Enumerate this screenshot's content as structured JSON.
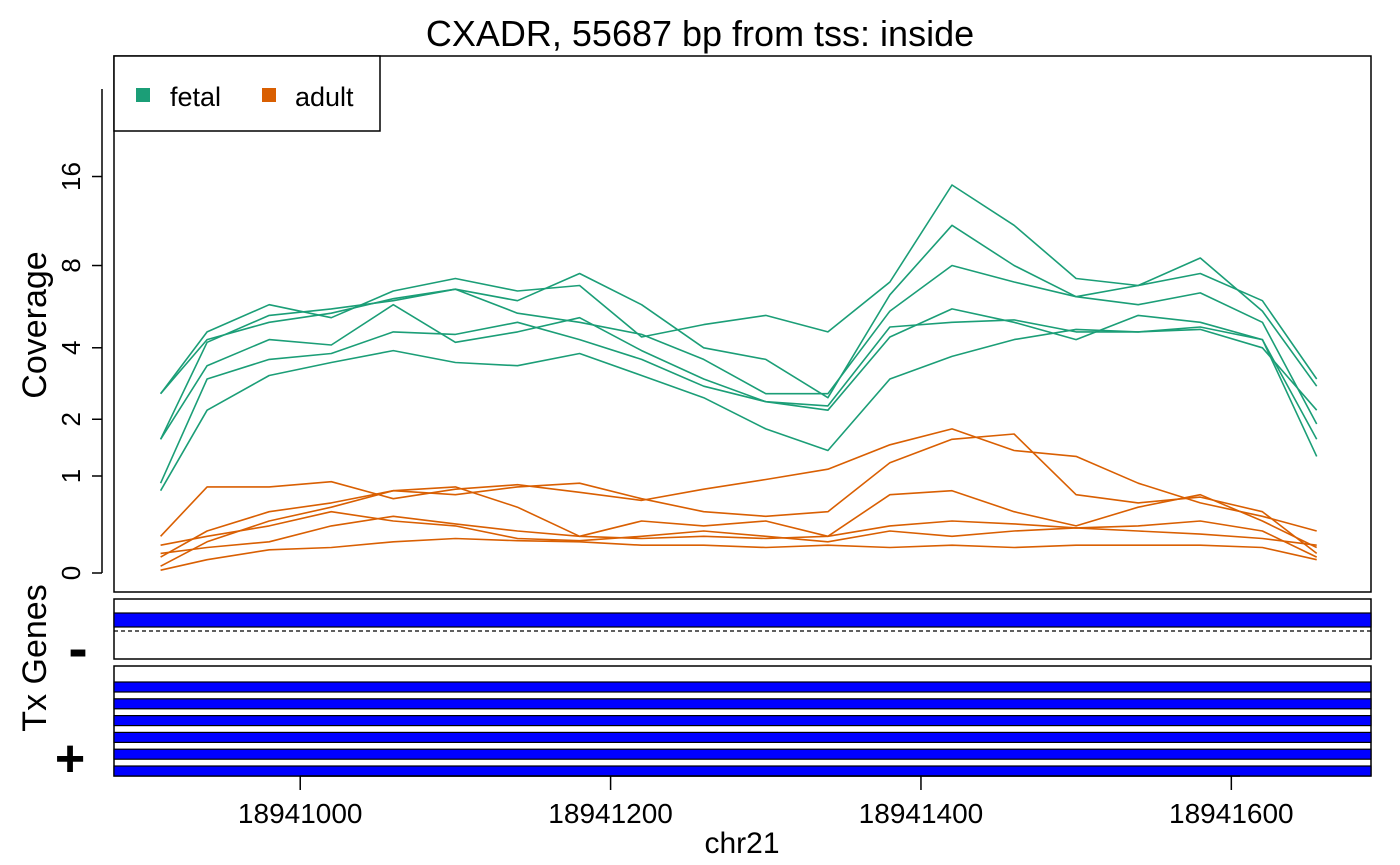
{
  "figure": {
    "title": "CXADR, 55687 bp from tss: inside",
    "xlabel": "chr21",
    "colors": {
      "fetal": "#1b9e77",
      "adult": "#d95f02",
      "exon": "#0000ff",
      "frame": "#000000"
    }
  },
  "chart_data": {
    "type": "line",
    "title": "CXADR, 55687 bp from tss: inside",
    "xlabel": "chr21",
    "ylabel": "Coverage",
    "y_scale": "log2(coverage + 1)",
    "xlim": [
      18940880,
      18941690
    ],
    "ylim": [
      0,
      16.5
    ],
    "y_ticks": [
      0,
      1,
      2,
      4,
      8,
      16
    ],
    "y_tick_labels": [
      "0",
      "1",
      "2",
      "4",
      "8",
      "16"
    ],
    "x_ticks": [
      18941000,
      18941200,
      18941400,
      18941600
    ],
    "x_tick_labels": [
      "18941000",
      "18941200",
      "18941400",
      "18941600"
    ],
    "grid": false,
    "legend": {
      "position": "top-left",
      "entries": [
        {
          "label": "fetal",
          "color": "#1b9e77"
        },
        {
          "label": "adult",
          "color": "#d95f02"
        }
      ]
    },
    "series": [
      {
        "group": "fetal",
        "x": [
          18940910,
          18940940,
          18940980,
          18941020,
          18941060,
          18941100,
          18941140,
          18941180,
          18941220,
          18941260,
          18941300,
          18941340,
          18941380,
          18941420,
          18941460,
          18941500,
          18941540,
          18941580,
          18941620,
          18941655
        ],
        "y": [
          2.6,
          4.6,
          5.8,
          5.2,
          6.5,
          7.2,
          6.5,
          6.8,
          4.4,
          4.9,
          5.3,
          4.6,
          7.0,
          15.0,
          11.0,
          7.2,
          6.8,
          7.5,
          6.0,
          3.0
        ]
      },
      {
        "group": "fetal",
        "x": [
          18940910,
          18940940,
          18940980,
          18941020,
          18941060,
          18941100,
          18941140,
          18941180,
          18941220,
          18941260,
          18941300,
          18941340,
          18941380,
          18941420,
          18941460,
          18941500,
          18941540,
          18941580,
          18941620,
          18941655
        ],
        "y": [
          1.6,
          4.2,
          5.3,
          5.6,
          6.0,
          6.6,
          6.0,
          7.5,
          5.8,
          4.0,
          3.6,
          2.5,
          6.3,
          11.0,
          8.0,
          6.2,
          6.8,
          8.5,
          5.5,
          2.8
        ]
      },
      {
        "group": "fetal",
        "x": [
          18940910,
          18940940,
          18940980,
          18941020,
          18941060,
          18941100,
          18941140,
          18941180,
          18941220,
          18941260,
          18941300,
          18941340,
          18941380,
          18941420,
          18941460,
          18941500,
          18941540,
          18941580,
          18941620,
          18941655
        ],
        "y": [
          2.6,
          4.3,
          5.0,
          5.4,
          6.1,
          6.6,
          5.4,
          5.0,
          4.5,
          3.6,
          2.6,
          2.6,
          5.5,
          8.0,
          7.0,
          6.2,
          5.8,
          6.4,
          5.0,
          1.9
        ]
      },
      {
        "group": "fetal",
        "x": [
          18940910,
          18940940,
          18940980,
          18941020,
          18941060,
          18941100,
          18941140,
          18941180,
          18941220,
          18941260,
          18941300,
          18941340,
          18941380,
          18941420,
          18941460,
          18941500,
          18941540,
          18941580,
          18941620,
          18941655
        ],
        "y": [
          1.6,
          3.4,
          4.3,
          4.1,
          5.8,
          4.2,
          4.6,
          5.2,
          3.9,
          3.0,
          2.4,
          2.2,
          4.4,
          5.6,
          5.0,
          4.3,
          5.3,
          5.0,
          4.3,
          1.6
        ]
      },
      {
        "group": "fetal",
        "x": [
          18940910,
          18940940,
          18940980,
          18941020,
          18941060,
          18941100,
          18941140,
          18941180,
          18941220,
          18941260,
          18941300,
          18941340,
          18941380,
          18941420,
          18941460,
          18941500,
          18941540,
          18941580,
          18941620,
          18941655
        ],
        "y": [
          0.8,
          2.2,
          3.1,
          3.5,
          3.9,
          3.5,
          3.4,
          3.8,
          3.1,
          2.5,
          1.8,
          1.4,
          3.0,
          3.7,
          4.3,
          4.7,
          4.6,
          4.8,
          4.3,
          1.3
        ]
      },
      {
        "group": "fetal",
        "x": [
          18940910,
          18940940,
          18940980,
          18941020,
          18941060,
          18941100,
          18941140,
          18941180,
          18941220,
          18941260,
          18941300,
          18941340,
          18941380,
          18941420,
          18941460,
          18941500,
          18941540,
          18941580,
          18941620,
          18941655
        ],
        "y": [
          0.9,
          3.0,
          3.6,
          3.8,
          4.6,
          4.5,
          5.0,
          4.3,
          3.6,
          2.8,
          2.4,
          2.3,
          4.8,
          5.0,
          5.1,
          4.6,
          4.6,
          4.7,
          4.0,
          2.2
        ]
      },
      {
        "group": "adult",
        "x": [
          18940910,
          18940940,
          18940980,
          18941020,
          18941060,
          18941100,
          18941140,
          18941180,
          18941220,
          18941260,
          18941300,
          18941340,
          18941380,
          18941420,
          18941460,
          18941500,
          18941540,
          18941580,
          18941620,
          18941655
        ],
        "y": [
          0.22,
          0.3,
          0.4,
          0.55,
          0.45,
          0.4,
          0.28,
          0.26,
          0.3,
          0.35,
          0.3,
          0.25,
          0.35,
          0.3,
          0.35,
          0.38,
          0.35,
          0.32,
          0.28,
          0.22
        ]
      },
      {
        "group": "adult",
        "x": [
          18940910,
          18940940,
          18940980,
          18941020,
          18941060,
          18941100,
          18941140,
          18941180,
          18941220,
          18941260,
          18941300,
          18941340,
          18941380,
          18941420,
          18941460,
          18941500,
          18941540,
          18941580,
          18941620,
          18941655
        ],
        "y": [
          0.3,
          0.85,
          0.85,
          0.92,
          0.7,
          0.82,
          0.88,
          0.78,
          0.68,
          0.82,
          0.95,
          1.1,
          1.5,
          1.8,
          1.4,
          1.3,
          0.9,
          0.65,
          0.5,
          0.35
        ]
      },
      {
        "group": "adult",
        "x": [
          18940910,
          18940940,
          18940980,
          18941020,
          18941060,
          18941100,
          18941140,
          18941180,
          18941220,
          18941260,
          18941300,
          18941340,
          18941380,
          18941420,
          18941460,
          18941500,
          18941540,
          18941580,
          18941620,
          18941655
        ],
        "y": [
          0.12,
          0.35,
          0.55,
          0.65,
          0.8,
          0.75,
          0.85,
          0.9,
          0.7,
          0.55,
          0.5,
          0.55,
          1.2,
          1.6,
          1.7,
          0.75,
          0.65,
          0.72,
          0.55,
          0.15
        ]
      },
      {
        "group": "adult",
        "x": [
          18940910,
          18940940,
          18940980,
          18941020,
          18941060,
          18941100,
          18941140,
          18941180,
          18941220,
          18941260,
          18941300,
          18941340,
          18941380,
          18941420,
          18941460,
          18941500,
          18941540,
          18941580,
          18941620,
          18941655
        ],
        "y": [
          0.05,
          0.25,
          0.45,
          0.6,
          0.8,
          0.85,
          0.6,
          0.3,
          0.28,
          0.3,
          0.28,
          0.3,
          0.75,
          0.8,
          0.55,
          0.4,
          0.6,
          0.75,
          0.45,
          0.2
        ]
      },
      {
        "group": "adult",
        "x": [
          18940910,
          18940940,
          18940980,
          18941020,
          18941060,
          18941100,
          18941140,
          18941180,
          18941220,
          18941260,
          18941300,
          18941340,
          18941380,
          18941420,
          18941460,
          18941500,
          18941540,
          18941580,
          18941620,
          18941655
        ],
        "y": [
          0.15,
          0.2,
          0.25,
          0.4,
          0.5,
          0.42,
          0.35,
          0.3,
          0.45,
          0.4,
          0.45,
          0.3,
          0.4,
          0.45,
          0.42,
          0.38,
          0.4,
          0.45,
          0.35,
          0.12
        ]
      },
      {
        "group": "adult",
        "x": [
          18940910,
          18940940,
          18940980,
          18941020,
          18941060,
          18941100,
          18941140,
          18941180,
          18941220,
          18941260,
          18941300,
          18941340,
          18941380,
          18941420,
          18941460,
          18941500,
          18941540,
          18941580,
          18941620,
          18941655
        ],
        "y": [
          0.02,
          0.1,
          0.18,
          0.2,
          0.25,
          0.28,
          0.26,
          0.25,
          0.22,
          0.22,
          0.2,
          0.22,
          0.2,
          0.22,
          0.2,
          0.22,
          0.22,
          0.22,
          0.2,
          0.1
        ]
      }
    ]
  },
  "genes_panel": {
    "ylabel": "Tx Genes",
    "minus_label": "-",
    "plus_label": "+",
    "minus_tracks": 1,
    "plus_tracks": 6
  }
}
